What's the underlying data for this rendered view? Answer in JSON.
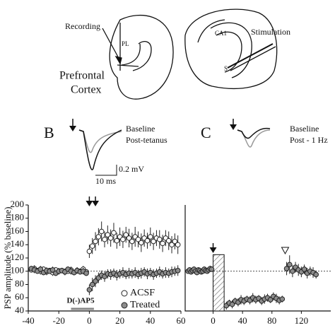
{
  "diagram": {
    "recording": "Recording",
    "pl": "PL",
    "region_line1": "Prefrontal",
    "region_line2": "Cortex",
    "ca1": "CA1",
    "stimulation": "Stimulation",
    "s": "S",
    "panel_b": "B",
    "b_baseline": "Baseline",
    "b_post": "Post-tetanus",
    "scale_mv": "0.2 mV",
    "scale_ms": "10 ms",
    "panel_c": "C",
    "c_baseline": "Baseline",
    "c_post": "Post - 1 Hz"
  },
  "chart_data": [
    {
      "type": "scatter",
      "y_label": "PSP amplitude (% baseline)",
      "xlim": [
        -40,
        60
      ],
      "ylim": [
        40,
        200
      ],
      "xticks": [
        -40,
        -20,
        0,
        20,
        40,
        60
      ],
      "yticks": [
        40,
        60,
        80,
        100,
        120,
        140,
        160,
        180,
        200
      ],
      "x": [
        -38,
        -36,
        -34,
        -32,
        -30,
        -28,
        -26,
        -24,
        -22,
        -20,
        -18,
        -16,
        -14,
        -12,
        -10,
        -8,
        -6,
        -4,
        -2,
        0,
        2,
        4,
        6,
        8,
        10,
        12,
        14,
        16,
        18,
        20,
        22,
        24,
        26,
        28,
        30,
        32,
        34,
        36,
        38,
        40,
        42,
        44,
        46,
        48,
        50,
        52,
        54,
        56,
        58
      ],
      "series": [
        {
          "name": "ACSF",
          "color": "#ffffff",
          "values": [
            102,
            104,
            101,
            100,
            103,
            99,
            101,
            98,
            102,
            100,
            101,
            99,
            100,
            102,
            98,
            101,
            100,
            103,
            99,
            130,
            138,
            145,
            152,
            160,
            148,
            155,
            150,
            158,
            146,
            152,
            148,
            155,
            150,
            145,
            152,
            148,
            143,
            150,
            146,
            152,
            145,
            150,
            148,
            142,
            150,
            146,
            140,
            145,
            140
          ],
          "errors": [
            4,
            5,
            4,
            5,
            4,
            5,
            4,
            5,
            4,
            5,
            4,
            5,
            4,
            5,
            4,
            5,
            4,
            5,
            4,
            10,
            12,
            14,
            13,
            15,
            12,
            14,
            13,
            15,
            12,
            14,
            13,
            12,
            14,
            13,
            15,
            12,
            14,
            13,
            12,
            14,
            13,
            12,
            14,
            13,
            12,
            14,
            13,
            12,
            14
          ]
        },
        {
          "name": "Treated",
          "color": "#8c8c8c",
          "values": [
            104,
            102,
            100,
            103,
            98,
            101,
            100,
            102,
            97,
            100,
            101,
            99,
            103,
            100,
            98,
            101,
            99,
            100,
            97,
            72,
            80,
            85,
            90,
            94,
            92,
            96,
            95,
            97,
            94,
            96,
            98,
            95,
            97,
            96,
            98,
            95,
            97,
            99,
            96,
            98,
            95,
            97,
            99,
            96,
            98,
            97,
            99,
            100,
            101
          ],
          "errors": [
            4,
            5,
            4,
            5,
            4,
            5,
            4,
            5,
            4,
            5,
            4,
            5,
            4,
            5,
            4,
            5,
            4,
            5,
            4,
            8,
            10,
            9,
            8,
            7,
            8,
            7,
            8,
            7,
            8,
            7,
            8,
            7,
            8,
            7,
            8,
            7,
            8,
            7,
            8,
            7,
            8,
            7,
            8,
            7,
            8,
            7,
            8,
            7,
            8
          ]
        }
      ],
      "reference_line": 100,
      "arrows": [
        0,
        4
      ],
      "annotation": "D(-)AP5",
      "drug_period": [
        -12,
        3
      ],
      "legend": "lower right"
    },
    {
      "type": "scatter",
      "xlim": [
        -38,
        160
      ],
      "ylim": [
        40,
        200
      ],
      "xticks": [
        0,
        40,
        80,
        120
      ],
      "x": [
        -34,
        -32,
        -30,
        -28,
        -26,
        -24,
        -22,
        -20,
        -18,
        -16,
        -14,
        -12,
        -10,
        -8,
        -6,
        -4,
        -2,
        18,
        22,
        26,
        30,
        34,
        38,
        42,
        46,
        50,
        54,
        58,
        62,
        66,
        70,
        74,
        78,
        82,
        86,
        90,
        94,
        100,
        104,
        108,
        112,
        116,
        120,
        124,
        128,
        132,
        136,
        140
      ],
      "series": [
        {
          "color": "#8c8c8c",
          "values": [
            100,
            102,
            99,
            101,
            103,
            100,
            98,
            102,
            101,
            99,
            100,
            103,
            101,
            100,
            102,
            104,
            103,
            48,
            52,
            50,
            55,
            53,
            57,
            55,
            58,
            56,
            60,
            57,
            59,
            55,
            58,
            60,
            57,
            62,
            59,
            56,
            58,
            104,
            110,
            100,
            106,
            102,
            99,
            103,
            97,
            100,
            98,
            95
          ],
          "errors": [
            4,
            4,
            4,
            4,
            4,
            4,
            4,
            4,
            4,
            4,
            4,
            4,
            4,
            4,
            4,
            4,
            4,
            6,
            5,
            6,
            5,
            6,
            7,
            6,
            5,
            6,
            7,
            6,
            5,
            6,
            7,
            6,
            5,
            6,
            7,
            6,
            5,
            10,
            14,
            9,
            8,
            9,
            8,
            7,
            8,
            7,
            8,
            6
          ]
        }
      ],
      "reference_line": 100,
      "stim_block": {
        "x": [
          0,
          15
        ],
        "top": 125
      },
      "arrows": [
        0
      ],
      "open_arrows": [
        98
      ]
    }
  ]
}
